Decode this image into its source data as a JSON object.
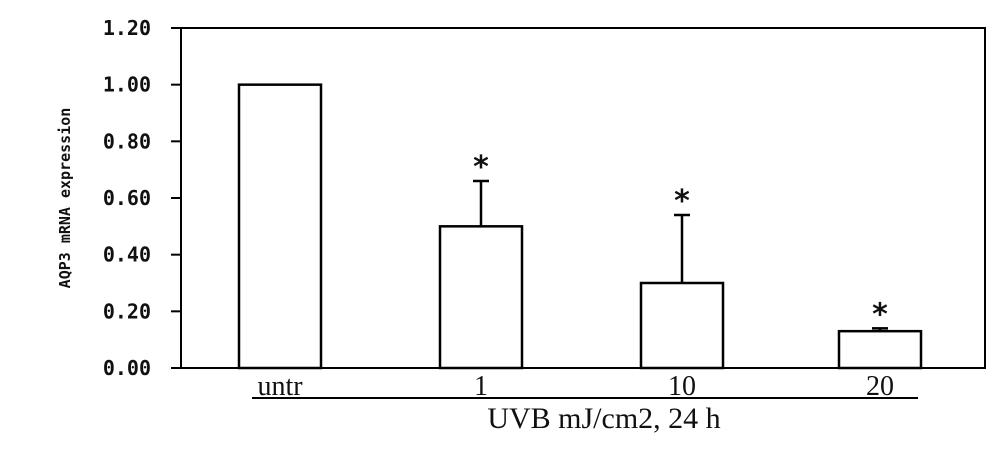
{
  "chart_data": {
    "type": "bar",
    "categories": [
      "untr",
      "1",
      "10",
      "20"
    ],
    "values": [
      1.0,
      0.5,
      0.3,
      0.13
    ],
    "error_upper": [
      0.0,
      0.16,
      0.24,
      0.01
    ],
    "significance": [
      "",
      "*",
      "*",
      "*"
    ],
    "ylabel": "AQP3 mRNA expression",
    "xlabel": "UVB mJ/cm2, 24 h",
    "ylim": [
      0,
      1.2
    ],
    "yticks": [
      "0.00",
      "0.20",
      "0.40",
      "0.60",
      "0.80",
      "1.00",
      "1.20"
    ],
    "grid": false,
    "bar_fill": "#ffffff",
    "bar_stroke": "#000000"
  }
}
